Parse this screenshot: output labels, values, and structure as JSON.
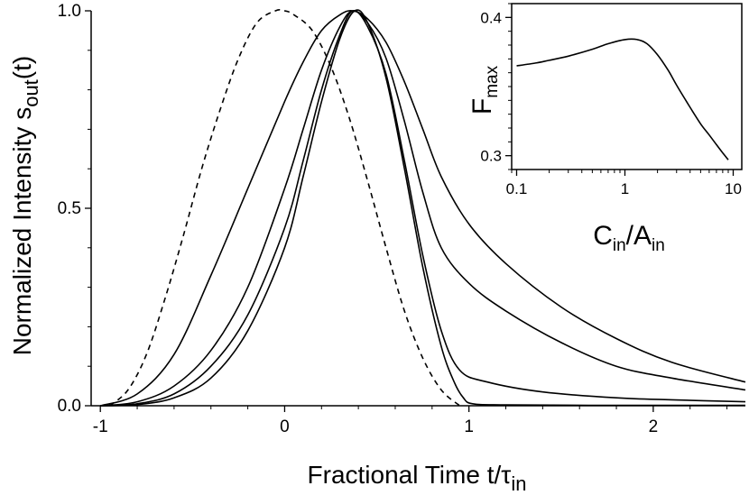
{
  "chart_data": [
    {
      "type": "line",
      "name": "main",
      "xlabel_parts": [
        "Fractional Time t/",
        "τ",
        "in"
      ],
      "ylabel_parts": [
        "Normalized Intensity s",
        "out",
        "(t)"
      ],
      "xlim": [
        -1.05,
        2.5
      ],
      "ylim": [
        0,
        1.0
      ],
      "x_ticks": [
        -1,
        0,
        1,
        2
      ],
      "x_tick_labels": [
        "-1",
        "0",
        "1",
        "2"
      ],
      "y_ticks": [
        0,
        0.5,
        1.0
      ],
      "y_tick_labels": [
        "0.0",
        "0.5",
        "1.0"
      ],
      "grid": false,
      "series": [
        {
          "style": "dashed",
          "x": [
            -0.95,
            -0.85,
            -0.75,
            -0.65,
            -0.55,
            -0.45,
            -0.35,
            -0.25,
            -0.15,
            -0.05,
            0,
            0.05,
            0.15,
            0.25,
            0.35,
            0.45,
            0.55,
            0.65,
            0.75,
            0.85,
            0.95
          ],
          "y": [
            0.0,
            0.04,
            0.13,
            0.27,
            0.43,
            0.6,
            0.75,
            0.88,
            0.97,
            1.0,
            1.0,
            0.99,
            0.95,
            0.86,
            0.73,
            0.57,
            0.4,
            0.24,
            0.12,
            0.04,
            0.0
          ]
        },
        {
          "style": "solid",
          "x": [
            -1.0,
            -0.8,
            -0.6,
            -0.4,
            -0.2,
            0,
            0.1,
            0.2,
            0.3,
            0.37,
            0.45,
            0.55,
            0.65,
            0.75,
            0.85,
            1.0,
            1.2,
            1.5,
            1.8,
            2.1,
            2.5
          ],
          "y": [
            0.0,
            0.03,
            0.13,
            0.33,
            0.55,
            0.77,
            0.87,
            0.95,
            0.99,
            1.0,
            0.98,
            0.92,
            0.82,
            0.7,
            0.58,
            0.46,
            0.36,
            0.25,
            0.17,
            0.11,
            0.06
          ]
        },
        {
          "style": "solid",
          "x": [
            -1.0,
            -0.8,
            -0.6,
            -0.4,
            -0.2,
            0,
            0.1,
            0.2,
            0.3,
            0.37,
            0.45,
            0.55,
            0.65,
            0.75,
            0.85,
            1.0,
            1.2,
            1.5,
            1.8,
            2.1,
            2.5
          ],
          "y": [
            0.0,
            0.01,
            0.05,
            0.14,
            0.3,
            0.55,
            0.7,
            0.85,
            0.96,
            1.0,
            0.97,
            0.88,
            0.72,
            0.54,
            0.4,
            0.31,
            0.24,
            0.16,
            0.1,
            0.07,
            0.04
          ]
        },
        {
          "style": "solid",
          "x": [
            -1.0,
            -0.8,
            -0.6,
            -0.4,
            -0.2,
            0,
            0.1,
            0.2,
            0.3,
            0.37,
            0.45,
            0.55,
            0.65,
            0.75,
            0.85,
            0.95,
            1.1,
            1.4,
            1.8,
            2.1,
            2.5
          ],
          "y": [
            0.0,
            0.005,
            0.03,
            0.1,
            0.23,
            0.45,
            0.62,
            0.8,
            0.94,
            1.0,
            0.96,
            0.84,
            0.62,
            0.38,
            0.19,
            0.09,
            0.06,
            0.035,
            0.02,
            0.015,
            0.01
          ]
        },
        {
          "style": "solid",
          "x": [
            -1.0,
            -0.8,
            -0.6,
            -0.4,
            -0.2,
            0,
            0.1,
            0.2,
            0.3,
            0.38,
            0.45,
            0.55,
            0.65,
            0.75,
            0.85,
            0.92,
            0.97,
            1.02,
            1.2,
            1.8,
            2.5
          ],
          "y": [
            0.0,
            0.003,
            0.02,
            0.07,
            0.19,
            0.4,
            0.58,
            0.77,
            0.93,
            1.0,
            0.97,
            0.83,
            0.6,
            0.35,
            0.15,
            0.06,
            0.02,
            0.005,
            0.002,
            0.001,
            0.001
          ]
        }
      ]
    },
    {
      "type": "line",
      "name": "inset",
      "xlabel_parts": [
        "C",
        "in",
        "/A",
        "in"
      ],
      "ylabel_parts": [
        "F",
        "max"
      ],
      "x_scale": "log",
      "xlim": [
        0.09,
        12
      ],
      "ylim": [
        0.29,
        0.41
      ],
      "x_ticks": [
        0.1,
        1,
        10
      ],
      "x_tick_labels": [
        "0.1",
        "1",
        "10"
      ],
      "y_ticks": [
        0.3,
        0.4
      ],
      "y_tick_labels": [
        "0.3",
        "0.4"
      ],
      "grid": false,
      "series": [
        {
          "style": "solid",
          "x": [
            0.1,
            0.15,
            0.2,
            0.3,
            0.5,
            0.7,
            1.0,
            1.3,
            1.6,
            2.0,
            2.5,
            3.0,
            4.0,
            5.0,
            6.0,
            7.0,
            8.0,
            9.0
          ],
          "y": [
            0.365,
            0.367,
            0.369,
            0.372,
            0.377,
            0.381,
            0.384,
            0.384,
            0.381,
            0.373,
            0.362,
            0.351,
            0.335,
            0.323,
            0.315,
            0.308,
            0.302,
            0.297
          ]
        }
      ]
    }
  ]
}
